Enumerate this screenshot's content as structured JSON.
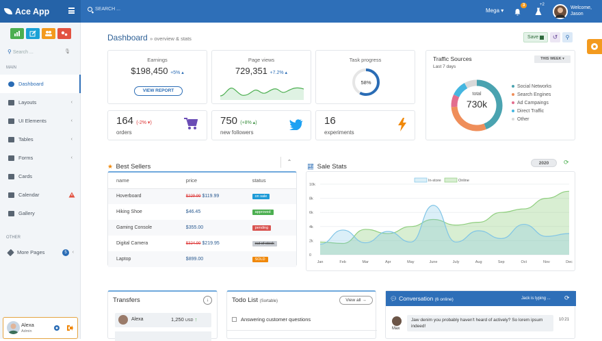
{
  "topbar": {
    "brand": "Ace App",
    "search_placeholder": "SEARCH ...",
    "mega": "Mega",
    "notif_count": "3",
    "tasks_count": "+2",
    "welcome": "Welcome,",
    "user": "Jason"
  },
  "sidebar": {
    "search_placeholder": "Search ...",
    "main_label": "MAIN",
    "other_label": "OTHER",
    "items": [
      {
        "label": "Dashboard"
      },
      {
        "label": "Layouts"
      },
      {
        "label": "UI Elements"
      },
      {
        "label": "Tables"
      },
      {
        "label": "Forms"
      },
      {
        "label": "Cards"
      },
      {
        "label": "Calendar"
      },
      {
        "label": "Gallery"
      }
    ],
    "more_pages": "More Pages",
    "more_badge": "5",
    "user_name": "Alexa",
    "user_role": "Admin"
  },
  "header": {
    "title": "Dashboard",
    "subtitle": "» overview & stats",
    "save": "Save"
  },
  "stats": {
    "earnings_title": "Earnings",
    "earnings": "$198,450",
    "earnings_change": "+5%",
    "view_report": "VIEW REPORT",
    "pageviews_title": "Page views",
    "pageviews": "729,351",
    "pageviews_change": "+7.2%",
    "task_title": "Task progress",
    "task_value": "58%",
    "task_fraction": 0.58,
    "orders": "164",
    "orders_change": "(-2% ▾)",
    "orders_label": "orders",
    "followers": "750",
    "followers_change": "(+8% ▴)",
    "followers_label": "new followers",
    "experiments": "16",
    "experiments_label": "experiments"
  },
  "traffic": {
    "title": "Traffic Sources",
    "subtitle": "Last 7 days",
    "period": "THIS WEEK",
    "total_label": "total",
    "total": "730k",
    "legend": [
      {
        "name": "Social Networks",
        "color": "#4aa3b0"
      },
      {
        "name": "Search Engines",
        "color": "#ef8e5a"
      },
      {
        "name": "Ad Campaings",
        "color": "#e36d8e"
      },
      {
        "name": "Direct Traffic",
        "color": "#45b6e0"
      },
      {
        "name": "Other",
        "color": "#d9d9d9"
      }
    ],
    "shares": [
      0.44,
      0.3,
      0.08,
      0.1,
      0.08
    ]
  },
  "bestsellers": {
    "title": "Best Sellers",
    "headers": [
      "name",
      "price",
      "status"
    ],
    "rows": [
      {
        "name": "Hoverboard",
        "old": "$229.99",
        "price": "$119.99",
        "status": "on sale",
        "color": "#1e9bd7"
      },
      {
        "name": "Hiking Shoe",
        "old": "",
        "price": "$46.45",
        "status": "approved",
        "color": "#4caf50"
      },
      {
        "name": "Gaming Console",
        "old": "",
        "price": "$355.00",
        "status": "pending",
        "color": "#d9534f"
      },
      {
        "name": "Digital Camera",
        "old": "$324.99",
        "price": "$219.95",
        "status": "out of stock",
        "color": "#c8ccd2"
      },
      {
        "name": "Laptop",
        "old": "",
        "price": "$899.00",
        "status": "SOLD",
        "color": "#f0880a"
      }
    ]
  },
  "salestats": {
    "title": "Sale Stats",
    "year": "2020"
  },
  "chart_data": {
    "type": "area",
    "categories": [
      "Jan",
      "Feb",
      "Mar",
      "Apr",
      "May",
      "June",
      "July",
      "Aug",
      "Sep",
      "Oct",
      "Nov",
      "Dec"
    ],
    "series": [
      {
        "name": "In-store",
        "values": [
          1.5,
          3.5,
          1.7,
          3.3,
          1.8,
          7.0,
          1.8,
          3.4,
          2.3,
          4.3,
          2.6,
          3.0
        ],
        "color": "#7fc4e6"
      },
      {
        "name": "Online",
        "values": [
          1.8,
          1.6,
          3.6,
          3.0,
          4.0,
          5.0,
          4.2,
          4.6,
          6.0,
          6.5,
          8.0,
          9.0
        ],
        "color": "#8fce7e"
      }
    ],
    "yticks": [
      "0",
      "2k",
      "4k",
      "6k",
      "8k",
      "10k"
    ],
    "ylim": [
      0,
      10
    ]
  },
  "transfers": {
    "title": "Transfers",
    "row1_name": "Alexa",
    "row1_amount": "1,250",
    "row1_currency": "USD"
  },
  "todo": {
    "title": "Todo List",
    "subtitle": "(Sortable)",
    "view_all": "View all",
    "item1": "Answering customer questions"
  },
  "conversation": {
    "title": "Conversation",
    "online": "(6 online)",
    "typing": "Jack is typing ...",
    "sender": "Max",
    "message": "Jaw denim you probably haven't heard of actively? So lorem ipsum indeed!",
    "time": "10:21"
  }
}
